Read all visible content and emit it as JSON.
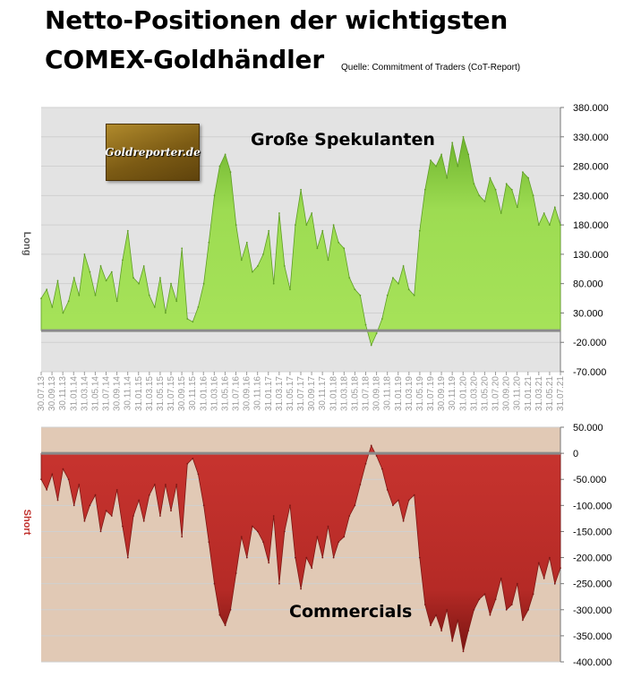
{
  "title_line_1": "Netto-Positionen der wichtigsten",
  "title_line_2": "COMEX-Goldhändler",
  "source": "Quelle: Commitment of Traders (CoT-Report)",
  "logo_text": "Goldreporter.de",
  "colors": {
    "speculators_fill": "#9ddc52",
    "speculators_dark": "#5f9e25",
    "commercials_fill": "#c0302c",
    "commercials_dark": "#7c1714",
    "top_plot_bg": "#e3e3e3",
    "bottom_plot_bg": "#e1c9b5",
    "short_label": "#c0302c"
  },
  "chart_data": [
    {
      "type": "area",
      "title": "",
      "annotation": "Große Spekulanten",
      "ylabel": "Long",
      "ylim": [
        -70000,
        380000
      ],
      "yticks": [
        "380.000",
        "330.000",
        "280.000",
        "230.000",
        "180.000",
        "130.000",
        "80.000",
        "30.000",
        "-20.000",
        "-70.000"
      ],
      "xticks": [
        "30.07.13",
        "30.09.13",
        "30.11.13",
        "31.01.14",
        "31.03.14",
        "31.05.14",
        "31.07.14",
        "30.09.14",
        "30.11.14",
        "31.01.15",
        "31.03.15",
        "31.05.15",
        "31.07.15",
        "30.09.15",
        "30.11.15",
        "31.01.16",
        "31.03.16",
        "31.05.16",
        "31.07.16",
        "30.09.16",
        "30.11.16",
        "31.01.17",
        "31.03.17",
        "31.05.17",
        "31.07.17",
        "30.09.17",
        "30.11.17",
        "31.01.18",
        "31.03.18",
        "31.05.18",
        "31.07.18",
        "30.09.18",
        "30.11.18",
        "31.01.19",
        "31.03.19",
        "31.05.19",
        "31.07.19",
        "30.09.19",
        "30.11.19",
        "31.01.20",
        "31.03.20",
        "31.05.20",
        "31.07.20",
        "30.09.20",
        "30.11.20",
        "31.01.21",
        "31.03.21",
        "31.05.21",
        "31.07.21"
      ],
      "grid": true,
      "series": [
        {
          "x": [
            "30.07.13",
            "30.08.13",
            "30.09.13",
            "31.10.13",
            "30.11.13",
            "31.12.13",
            "31.01.14",
            "28.02.14",
            "31.03.14",
            "30.04.14",
            "31.05.14",
            "30.06.14",
            "31.07.14",
            "31.08.14",
            "30.09.14",
            "31.10.14",
            "30.11.14",
            "31.12.14",
            "31.01.15",
            "28.02.15",
            "31.03.15",
            "30.04.15",
            "31.05.15",
            "30.06.15",
            "31.07.15",
            "31.08.15",
            "30.09.15",
            "31.10.15",
            "30.11.15",
            "31.12.15",
            "31.01.16",
            "29.02.16",
            "31.03.16",
            "30.04.16",
            "31.05.16",
            "30.06.16",
            "31.07.16",
            "31.08.16",
            "30.09.16",
            "31.10.16",
            "30.11.16",
            "31.12.16",
            "31.01.17",
            "28.02.17",
            "31.03.17",
            "30.04.17",
            "31.05.17",
            "30.06.17",
            "31.07.17",
            "31.08.17",
            "30.09.17",
            "31.10.17",
            "30.11.17",
            "31.12.17",
            "31.01.18",
            "28.02.18",
            "31.03.18",
            "30.04.18",
            "31.05.18",
            "30.06.18",
            "31.07.18",
            "31.08.18",
            "30.09.18",
            "31.10.18",
            "30.11.18",
            "31.12.18",
            "31.01.19",
            "28.02.19",
            "31.03.19",
            "30.04.19",
            "31.05.19",
            "30.06.19",
            "31.07.19",
            "31.08.19",
            "30.09.19",
            "31.10.19",
            "30.11.19",
            "31.12.19",
            "31.01.20",
            "29.02.20",
            "31.03.20",
            "30.04.20",
            "31.05.20",
            "30.06.20",
            "31.07.20",
            "31.08.20",
            "30.09.20",
            "31.10.20",
            "30.11.20",
            "31.12.20",
            "31.01.21",
            "28.02.21",
            "31.03.21",
            "30.04.21",
            "31.05.21",
            "30.06.21",
            "31.07.21"
          ],
          "values": [
            55000,
            70000,
            40000,
            85000,
            30000,
            50000,
            90000,
            60000,
            130000,
            100000,
            60000,
            110000,
            85000,
            100000,
            50000,
            120000,
            170000,
            90000,
            80000,
            110000,
            60000,
            40000,
            90000,
            30000,
            80000,
            50000,
            140000,
            20000,
            15000,
            40000,
            80000,
            150000,
            230000,
            280000,
            300000,
            270000,
            180000,
            120000,
            150000,
            100000,
            110000,
            130000,
            170000,
            80000,
            200000,
            110000,
            70000,
            180000,
            240000,
            180000,
            200000,
            140000,
            170000,
            120000,
            180000,
            150000,
            140000,
            90000,
            70000,
            60000,
            10000,
            -25000,
            -5000,
            20000,
            60000,
            90000,
            80000,
            110000,
            70000,
            60000,
            170000,
            240000,
            290000,
            280000,
            300000,
            260000,
            320000,
            280000,
            330000,
            300000,
            250000,
            230000,
            220000,
            260000,
            240000,
            200000,
            250000,
            240000,
            210000,
            270000,
            260000,
            230000,
            180000,
            200000,
            180000,
            210000,
            180000
          ]
        }
      ]
    },
    {
      "type": "area",
      "title": "",
      "annotation": "Commercials",
      "ylabel": "Short",
      "ylim": [
        -400000,
        50000
      ],
      "yticks": [
        "50.000",
        "0",
        "-50.000",
        "-100.000",
        "-150.000",
        "-200.000",
        "-250.000",
        "-300.000",
        "-350.000",
        "-400.000"
      ],
      "grid": true,
      "series": [
        {
          "x": [
            "30.07.13",
            "30.08.13",
            "30.09.13",
            "31.10.13",
            "30.11.13",
            "31.12.13",
            "31.01.14",
            "28.02.14",
            "31.03.14",
            "30.04.14",
            "31.05.14",
            "30.06.14",
            "31.07.14",
            "31.08.14",
            "30.09.14",
            "31.10.14",
            "30.11.14",
            "31.12.14",
            "31.01.15",
            "28.02.15",
            "31.03.15",
            "30.04.15",
            "31.05.15",
            "30.06.15",
            "31.07.15",
            "31.08.15",
            "30.09.15",
            "31.10.15",
            "30.11.15",
            "31.12.15",
            "31.01.16",
            "29.02.16",
            "31.03.16",
            "30.04.16",
            "31.05.16",
            "30.06.16",
            "31.07.16",
            "31.08.16",
            "30.09.16",
            "31.10.16",
            "30.11.16",
            "31.12.16",
            "31.01.17",
            "28.02.17",
            "31.03.17",
            "30.04.17",
            "31.05.17",
            "30.06.17",
            "31.07.17",
            "31.08.17",
            "30.09.17",
            "31.10.17",
            "30.11.17",
            "31.12.17",
            "31.01.18",
            "28.02.18",
            "31.03.18",
            "30.04.18",
            "31.05.18",
            "30.06.18",
            "31.07.18",
            "31.08.18",
            "30.09.18",
            "31.10.18",
            "30.11.18",
            "31.12.18",
            "31.01.19",
            "28.02.19",
            "31.03.19",
            "30.04.19",
            "31.05.19",
            "30.06.19",
            "31.07.19",
            "31.08.19",
            "30.09.19",
            "31.10.19",
            "30.11.19",
            "31.12.19",
            "31.01.20",
            "29.02.20",
            "31.03.20",
            "30.04.20",
            "31.05.20",
            "30.06.20",
            "31.07.20",
            "31.08.20",
            "30.09.20",
            "31.10.20",
            "30.11.20",
            "31.12.20",
            "31.01.21",
            "28.02.21",
            "31.03.21",
            "30.04.21",
            "31.05.21",
            "30.06.21",
            "31.07.21"
          ],
          "values": [
            -50000,
            -70000,
            -40000,
            -90000,
            -30000,
            -50000,
            -100000,
            -60000,
            -130000,
            -100000,
            -80000,
            -150000,
            -110000,
            -120000,
            -70000,
            -140000,
            -200000,
            -120000,
            -90000,
            -130000,
            -80000,
            -60000,
            -120000,
            -60000,
            -110000,
            -60000,
            -160000,
            -20000,
            -10000,
            -40000,
            -100000,
            -170000,
            -250000,
            -310000,
            -330000,
            -300000,
            -230000,
            -160000,
            -200000,
            -140000,
            -150000,
            -170000,
            -210000,
            -120000,
            -250000,
            -150000,
            -100000,
            -200000,
            -260000,
            -200000,
            -220000,
            -160000,
            -200000,
            -140000,
            -200000,
            -170000,
            -160000,
            -120000,
            -100000,
            -60000,
            -20000,
            15000,
            -5000,
            -30000,
            -70000,
            -100000,
            -90000,
            -130000,
            -90000,
            -80000,
            -200000,
            -290000,
            -330000,
            -310000,
            -340000,
            -300000,
            -360000,
            -320000,
            -380000,
            -340000,
            -300000,
            -280000,
            -270000,
            -310000,
            -280000,
            -240000,
            -300000,
            -290000,
            -250000,
            -320000,
            -300000,
            -270000,
            -210000,
            -240000,
            -200000,
            -250000,
            -220000
          ]
        }
      ]
    }
  ]
}
